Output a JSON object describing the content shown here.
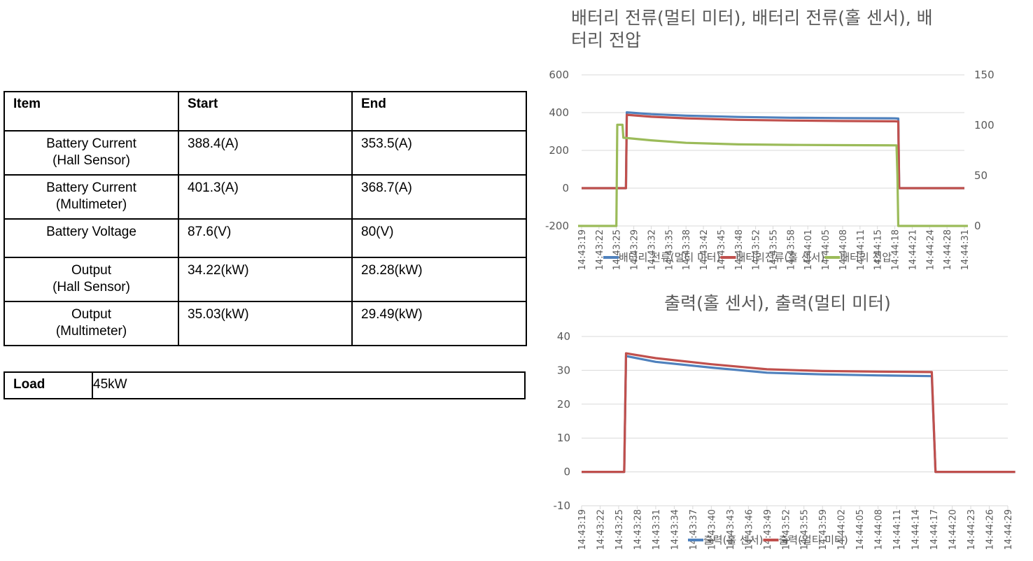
{
  "table": {
    "headers": [
      "Item",
      "Start",
      "End"
    ],
    "rows": [
      {
        "item_line1": "Battery Current",
        "item_line2": "(Hall Sensor)",
        "start": "388.4(A)",
        "end": "353.5(A)"
      },
      {
        "item_line1": "Battery Current",
        "item_line2": "(Multimeter)",
        "start": "401.3(A)",
        "end": "368.7(A)"
      },
      {
        "item_line1": "Battery Voltage",
        "item_line2": "",
        "start": "87.6(V)",
        "end": "80(V)"
      },
      {
        "item_line1": "Output",
        "item_line2": "(Hall Sensor)",
        "start": "34.22(kW)",
        "end": "28.28(kW)"
      },
      {
        "item_line1": "Output",
        "item_line2": "(Multimeter)",
        "start": "35.03(kW)",
        "end": "29.49(kW)"
      }
    ]
  },
  "load": {
    "label": "Load",
    "value": "45kW"
  },
  "colors": {
    "blue": "#4f81bd",
    "red": "#c0504d",
    "green": "#9bbb59",
    "grid": "#d9d9d9",
    "text": "#595959"
  },
  "chart_data": [
    {
      "type": "line",
      "title_line1": "배터리 전류(멀티 미터), 배터리 전류(홀 센서), 배",
      "title_line2": "터리 전압",
      "x_ticks": [
        "14:43:19",
        "14:43:22",
        "14:43:25",
        "14:43:29",
        "14:43:32",
        "14:43:35",
        "14:43:38",
        "14:43:42",
        "14:43:45",
        "14:43:48",
        "14:43:52",
        "14:43:55",
        "14:43:58",
        "14:44:01",
        "14:44:05",
        "14:44:08",
        "14:44:11",
        "14:44:15",
        "14:44:18",
        "14:44:21",
        "14:44:24",
        "14:44:28",
        "14:44:31"
      ],
      "y_left": {
        "ticks": [
          "600",
          "400",
          "200",
          "0",
          "-200"
        ],
        "min": -200,
        "max": 600
      },
      "y_right": {
        "ticks": [
          "150",
          "100",
          "50",
          "0"
        ],
        "min": 0,
        "max": 150
      },
      "grid": true,
      "legend_position": "bottom",
      "series": [
        {
          "name": "배터리 전류(멀티 미터)",
          "color": "blue",
          "axis": "left",
          "points": [
            [
              0,
              0
            ],
            [
              2.55,
              0
            ],
            [
              2.6,
              401.3
            ],
            [
              4,
              392
            ],
            [
              6,
              384
            ],
            [
              9,
              377
            ],
            [
              12,
              373
            ],
            [
              15,
              371
            ],
            [
              18,
              369.5
            ],
            [
              18.2,
              368.7
            ],
            [
              18.25,
              0
            ],
            [
              22,
              0
            ]
          ]
        },
        {
          "name": "배터리전류(홀 센서)",
          "color": "red",
          "axis": "left",
          "points": [
            [
              0,
              0
            ],
            [
              2.55,
              0
            ],
            [
              2.6,
              388.4
            ],
            [
              4,
              378
            ],
            [
              6,
              370
            ],
            [
              9,
              362
            ],
            [
              12,
              358
            ],
            [
              15,
              355.5
            ],
            [
              18,
              354
            ],
            [
              18.2,
              353.5
            ],
            [
              18.25,
              0
            ],
            [
              22,
              0
            ]
          ]
        },
        {
          "name": "배터리 전압",
          "color": "green",
          "axis": "right",
          "points": [
            [
              -0.2,
              0
            ],
            [
              2.0,
              0
            ],
            [
              2.05,
              100.5
            ],
            [
              2.35,
              100.5
            ],
            [
              2.4,
              87.6
            ],
            [
              4,
              85
            ],
            [
              6,
              82.5
            ],
            [
              9,
              81
            ],
            [
              12,
              80.5
            ],
            [
              15,
              80.2
            ],
            [
              18.1,
              80
            ],
            [
              18.15,
              50
            ],
            [
              18.2,
              0
            ],
            [
              22.2,
              0
            ]
          ]
        }
      ]
    },
    {
      "type": "line",
      "title": "출력(홀 센서), 출력(멀티 미터)",
      "x_ticks": [
        "14:43:19",
        "14:43:22",
        "14:43:25",
        "14:43:28",
        "14:43:31",
        "14:43:34",
        "14:43:37",
        "14:43:40",
        "14:43:43",
        "14:43:46",
        "14:43:49",
        "14:43:52",
        "14:43:55",
        "14:43:59",
        "14:44:02",
        "14:44:05",
        "14:44:08",
        "14:44:11",
        "14:44:14",
        "14:44:17",
        "14:44:20",
        "14:44:23",
        "14:44:26",
        "14:44:29"
      ],
      "y_left": {
        "ticks": [
          "40",
          "30",
          "20",
          "10",
          "0",
          "-10"
        ],
        "min": -10,
        "max": 40
      },
      "grid": true,
      "legend_position": "bottom",
      "series": [
        {
          "name": "출력(홀 센서)",
          "color": "blue",
          "axis": "left",
          "points": [
            [
              0,
              0
            ],
            [
              2.3,
              0
            ],
            [
              2.4,
              34.22
            ],
            [
              4,
              32.5
            ],
            [
              7,
              30.8
            ],
            [
              10,
              29.3
            ],
            [
              13,
              28.8
            ],
            [
              16,
              28.5
            ],
            [
              18.9,
              28.28
            ],
            [
              19.1,
              0
            ],
            [
              23.4,
              0
            ]
          ]
        },
        {
          "name": "출력(멀티 미터)",
          "color": "red",
          "axis": "left",
          "points": [
            [
              0,
              0
            ],
            [
              2.3,
              0
            ],
            [
              2.4,
              35.03
            ],
            [
              4,
              33.6
            ],
            [
              7,
              31.8
            ],
            [
              10,
              30.3
            ],
            [
              13,
              29.8
            ],
            [
              16,
              29.6
            ],
            [
              18.9,
              29.49
            ],
            [
              19.1,
              0
            ],
            [
              23.4,
              0
            ]
          ]
        }
      ]
    }
  ]
}
